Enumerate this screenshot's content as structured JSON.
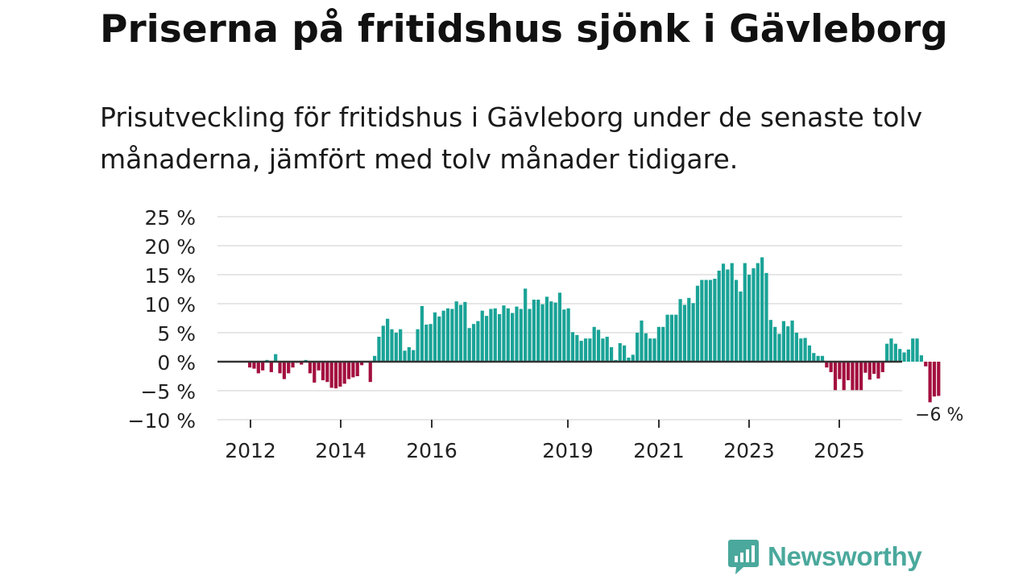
{
  "header": {
    "title": "Priserna på fritidshus sjönk i Gävleborg",
    "subtitle": "Prisutveckling för fritidshus i Gävleborg under de senaste tolv månaderna, jämfört med tolv månader tidigare."
  },
  "brand": {
    "name": "Newsworthy",
    "icon": "newsworthy-logo-icon",
    "color": "#4aa89c"
  },
  "colors": {
    "positive": "#1aa397",
    "negative": "#a3103f",
    "grid": "#dddddd",
    "zero": "#333333"
  },
  "chart_data": {
    "type": "bar",
    "title": "Priserna på fritidshus sjönk i Gävleborg",
    "subtitle": "Prisutveckling för fritidshus i Gävleborg under de senaste tolv månaderna, jämfört med tolv månader tidigare.",
    "xlabel": "",
    "ylabel": "",
    "ylim": [
      -10,
      25
    ],
    "yticks": [
      -10,
      -5,
      0,
      5,
      10,
      15,
      20,
      25
    ],
    "ytick_labels": [
      "−10 %",
      "−5 %",
      "0 %",
      "5 %",
      "10 %",
      "15 %",
      "20 %",
      "25 %"
    ],
    "xtick_labels": [
      "2012",
      "2014",
      "2016",
      "2019",
      "2021",
      "2023",
      "2025"
    ],
    "grid": true,
    "legend": "none",
    "annotation": {
      "text": "−6 %",
      "target": "last"
    },
    "values": [
      -1,
      -1.2,
      -2,
      -1.5,
      0.3,
      -1.8,
      1.3,
      -2,
      -3,
      -2,
      -1,
      -0.2,
      -0.5,
      0.3,
      -2,
      -3.6,
      -1.5,
      -3.2,
      -3.5,
      -4.5,
      -4.6,
      -4.3,
      -3.8,
      -3,
      -2.7,
      -2.5,
      -0.6,
      0.1,
      -3.5,
      1,
      4.3,
      6.2,
      7.4,
      5.6,
      5,
      5.6,
      1.9,
      2.5,
      2,
      5.6,
      9.6,
      6.4,
      6.5,
      8.5,
      7.8,
      8.8,
      9.2,
      9.1,
      10.4,
      9.8,
      10.3,
      5.8,
      6.5,
      7.0,
      8.8,
      7.9,
      9.1,
      9.2,
      8.2,
      9.7,
      9.2,
      8.4,
      9.5,
      9.1,
      12.6,
      9.1,
      10.7,
      10.7,
      9.9,
      11.2,
      10.4,
      10.2,
      11.9,
      9.0,
      9.2,
      5.1,
      4.6,
      3.6,
      4.0,
      4.0,
      6.0,
      5.5,
      4.0,
      4.3,
      2.5,
      0.3,
      3.2,
      2.8,
      0.7,
      1.2,
      5.0,
      7.1,
      4.9,
      4.0,
      4.0,
      6.0,
      6.0,
      8.1,
      8.1,
      8.1,
      10.8,
      9.8,
      11.0,
      10.1,
      13.1,
      14.1,
      14.1,
      14.1,
      14.3,
      15.7,
      16.9,
      15.9,
      17.0,
      14.1,
      12.1,
      17.0,
      15.0,
      16.1,
      17.0,
      18.0,
      15.3,
      7.2,
      6.0,
      4.8,
      7.0,
      6.1,
      7.1,
      5.0,
      4.0,
      4.1,
      2.8,
      1.5,
      1.0,
      1.0,
      -1.0,
      -1.8,
      -4.9,
      -3.0,
      -4.9,
      -3.2,
      -4.9,
      -4.9,
      -4.9,
      -1.9,
      -3.1,
      -2.1,
      -2.9,
      -1.8,
      3.1,
      4.0,
      3.1,
      2.2,
      1.6,
      2.1,
      4.0,
      4.0,
      1.1,
      -0.8,
      -7.0,
      -6.0,
      -5.9
    ]
  }
}
